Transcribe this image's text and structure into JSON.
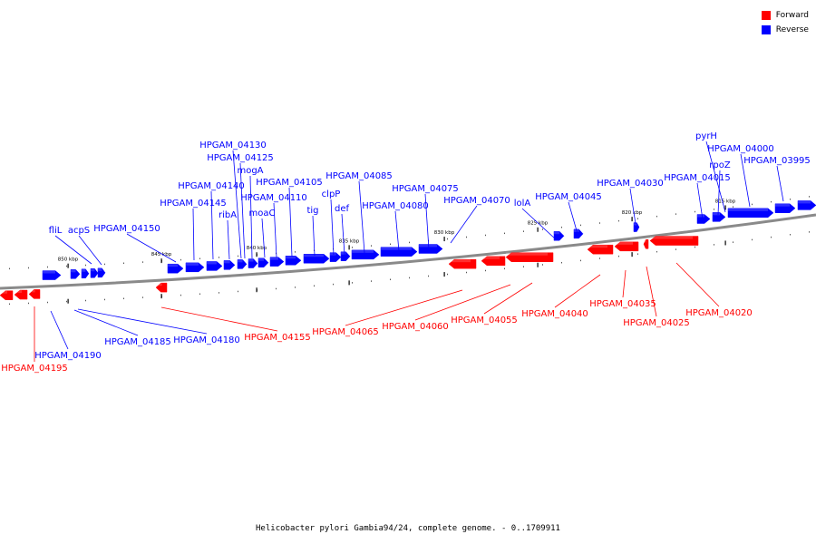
{
  "legend": [
    {
      "label": "Forward",
      "color": "#ff0000"
    },
    {
      "label": "Reverse",
      "color": "#0000ff"
    }
  ],
  "caption": "Helicobacter pylori Gambia94/24, complete genome. - 0..1709911",
  "colors": {
    "forward": "#ff0000",
    "reverse": "#0000ff",
    "backbone": "#8a8a8a"
  },
  "tick_labels": [
    "850 kbp",
    "845 kbp",
    "840 kbp",
    "835 kbp",
    "830 kbp",
    "825 kbp",
    "820 kbp",
    "815 kbp"
  ],
  "reverse_genes": [
    "fliL",
    "acpS",
    "HPGAM_04150",
    "HPGAM_04145",
    "HPGAM_04140",
    "ribA",
    "HPGAM_04130",
    "HPGAM_04125",
    "mogA",
    "HPGAM_04110",
    "moaC",
    "HPGAM_04105",
    "tig",
    "clpP",
    "def",
    "HPGAM_04085",
    "HPGAM_04080",
    "HPGAM_04075",
    "HPGAM_04070",
    "lolA",
    "HPGAM_04045",
    "HPGAM_04030",
    "HPGAM_04015",
    "rpoZ",
    "pyrH",
    "HPGAM_04000",
    "HPGAM_03995",
    "HPGAM_04185",
    "HPGAM_04180",
    "HPGAM_04190"
  ],
  "forward_genes": [
    "HPGAM_04195",
    "HPGAM_04155",
    "HPGAM_04065",
    "HPGAM_04060",
    "HPGAM_04055",
    "HPGAM_04040",
    "HPGAM_04035",
    "HPGAM_04025",
    "HPGAM_04020"
  ]
}
